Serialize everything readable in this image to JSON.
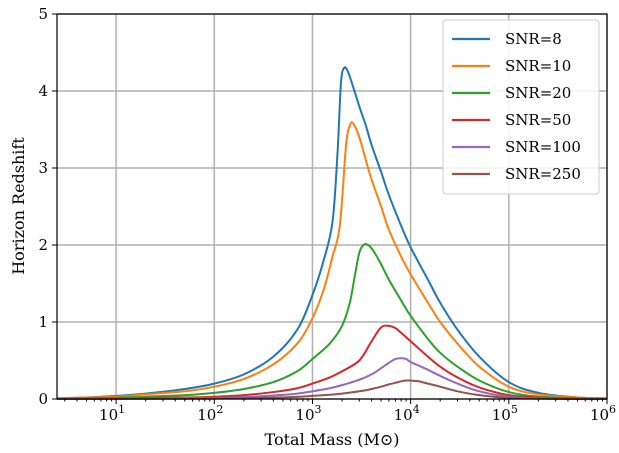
{
  "chart_data": {
    "type": "line",
    "xlabel": "Total Mass (M⊙)",
    "ylabel": "Horizon Redshift",
    "xscale": "log",
    "xlim": [
      2.5,
      1000000
    ],
    "ylim": [
      0,
      5
    ],
    "grid": true,
    "legend_position": "top-right",
    "x_ticks": [
      {
        "value": 10,
        "label": "10",
        "exp": "1"
      },
      {
        "value": 100,
        "label": "10",
        "exp": "2"
      },
      {
        "value": 1000,
        "label": "10",
        "exp": "3"
      },
      {
        "value": 10000,
        "label": "10",
        "exp": "4"
      },
      {
        "value": 100000,
        "label": "10",
        "exp": "5"
      },
      {
        "value": 1000000,
        "label": "10",
        "exp": "6"
      }
    ],
    "y_ticks": [
      0,
      1,
      2,
      3,
      4,
      5
    ],
    "series": [
      {
        "name": "SNR=8",
        "color": "#1f77b4",
        "x": [
          2.5,
          5,
          10,
          20,
          50,
          100,
          200,
          400,
          700,
          1000,
          1300,
          1600,
          1800,
          1950,
          2100,
          2300,
          2600,
          3000,
          3500,
          4000,
          5000,
          6000,
          8000,
          10000,
          15000,
          20000,
          30000,
          50000,
          100000,
          200000,
          500000,
          1000000
        ],
        "y": [
          0.01,
          0.02,
          0.04,
          0.07,
          0.13,
          0.2,
          0.32,
          0.55,
          0.9,
          1.35,
          1.8,
          2.3,
          3.2,
          4.1,
          4.3,
          4.25,
          4.05,
          3.8,
          3.55,
          3.3,
          2.95,
          2.65,
          2.25,
          1.97,
          1.55,
          1.25,
          0.9,
          0.55,
          0.22,
          0.08,
          0.02,
          0.01
        ]
      },
      {
        "name": "SNR=10",
        "color": "#ff7f0e",
        "x": [
          2.5,
          5,
          10,
          20,
          50,
          100,
          200,
          400,
          700,
          1000,
          1300,
          1600,
          1900,
          2200,
          2400,
          2600,
          3000,
          3500,
          4000,
          5000,
          6000,
          8000,
          10000,
          15000,
          20000,
          30000,
          50000,
          100000,
          200000,
          500000,
          1000000
        ],
        "y": [
          0.01,
          0.02,
          0.03,
          0.06,
          0.1,
          0.16,
          0.26,
          0.45,
          0.72,
          1.05,
          1.42,
          1.85,
          2.25,
          3.3,
          3.55,
          3.58,
          3.4,
          3.1,
          2.85,
          2.5,
          2.2,
          1.85,
          1.62,
          1.25,
          1.0,
          0.72,
          0.42,
          0.16,
          0.06,
          0.02,
          0.01
        ]
      },
      {
        "name": "SNR=20",
        "color": "#2ca02c",
        "x": [
          2.5,
          5,
          10,
          20,
          50,
          100,
          200,
          400,
          700,
          1000,
          1500,
          2000,
          2400,
          2700,
          3000,
          3300,
          3700,
          4200,
          5000,
          6000,
          8000,
          10000,
          15000,
          20000,
          30000,
          50000,
          100000,
          200000,
          500000,
          1000000
        ],
        "y": [
          0.0,
          0.01,
          0.015,
          0.03,
          0.05,
          0.08,
          0.13,
          0.22,
          0.36,
          0.52,
          0.72,
          0.95,
          1.25,
          1.6,
          1.9,
          2.0,
          2.0,
          1.92,
          1.75,
          1.55,
          1.28,
          1.08,
          0.78,
          0.6,
          0.42,
          0.24,
          0.09,
          0.03,
          0.01,
          0.0
        ]
      },
      {
        "name": "SNR=50",
        "color": "#d62728",
        "x": [
          2.5,
          10,
          50,
          100,
          200,
          400,
          700,
          1000,
          1500,
          2000,
          3000,
          4000,
          5000,
          6000,
          7000,
          8000,
          10000,
          15000,
          20000,
          30000,
          50000,
          100000,
          200000,
          500000,
          1000000
        ],
        "y": [
          0.0,
          0.01,
          0.02,
          0.03,
          0.05,
          0.09,
          0.14,
          0.2,
          0.28,
          0.36,
          0.5,
          0.75,
          0.93,
          0.95,
          0.92,
          0.86,
          0.75,
          0.55,
          0.42,
          0.28,
          0.15,
          0.05,
          0.02,
          0.0,
          0.0
        ]
      },
      {
        "name": "SNR=100",
        "color": "#9467bd",
        "x": [
          2.5,
          10,
          50,
          100,
          200,
          400,
          700,
          1000,
          1500,
          2000,
          3000,
          4000,
          5000,
          6000,
          7000,
          8000,
          9000,
          10000,
          15000,
          20000,
          30000,
          50000,
          100000,
          200000,
          500000,
          1000000
        ],
        "y": [
          0.0,
          0.005,
          0.01,
          0.015,
          0.025,
          0.045,
          0.07,
          0.1,
          0.14,
          0.18,
          0.25,
          0.32,
          0.4,
          0.47,
          0.52,
          0.53,
          0.52,
          0.48,
          0.38,
          0.3,
          0.2,
          0.1,
          0.03,
          0.01,
          0.0,
          0.0
        ]
      },
      {
        "name": "SNR=250",
        "color": "#8c564b",
        "x": [
          2.5,
          10,
          50,
          100,
          200,
          400,
          700,
          1000,
          1500,
          2000,
          3000,
          4000,
          5000,
          6000,
          7000,
          8000,
          9000,
          10000,
          12000,
          15000,
          20000,
          30000,
          50000,
          100000,
          200000,
          500000,
          1000000
        ],
        "y": [
          0.0,
          0.002,
          0.004,
          0.006,
          0.01,
          0.018,
          0.028,
          0.04,
          0.055,
          0.07,
          0.1,
          0.13,
          0.16,
          0.19,
          0.21,
          0.23,
          0.24,
          0.24,
          0.23,
          0.2,
          0.16,
          0.1,
          0.05,
          0.015,
          0.005,
          0.0,
          0.0
        ]
      }
    ]
  }
}
